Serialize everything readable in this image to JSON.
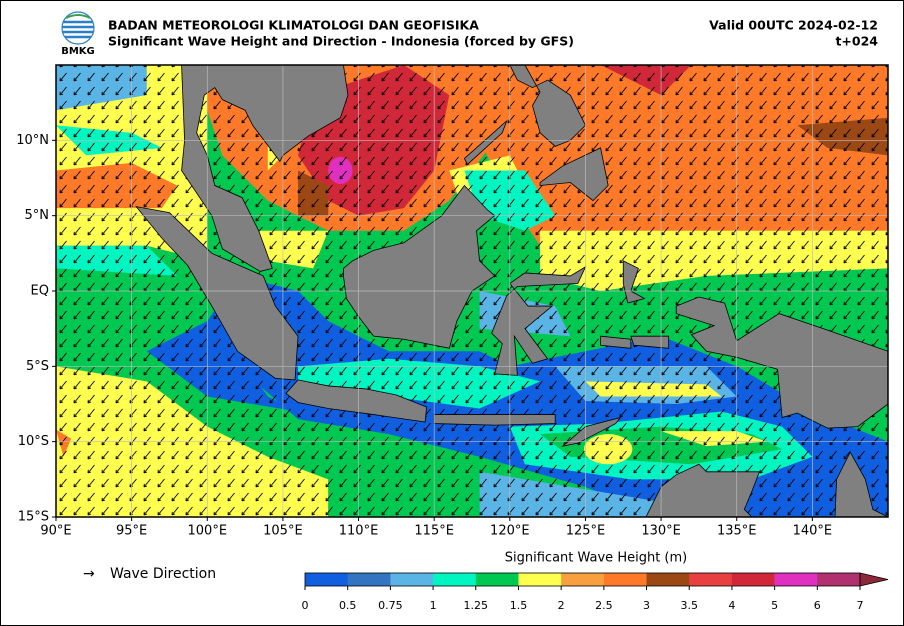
{
  "header": {
    "logo_text": "BMKG",
    "agency": "BADAN METEOROLOGI KLIMATOLOGI DAN GEOFISIKA",
    "title": "Significant Wave Height and Direction - Indonesia (forced by GFS)",
    "valid": "Valid 00UTC 2024-02-12",
    "lead": "t+024"
  },
  "map": {
    "xlim": [
      90,
      145
    ],
    "ylim": [
      -15,
      15
    ],
    "xticks": [
      {
        "value": 90,
        "label": "90°E"
      },
      {
        "value": 95,
        "label": "95°E"
      },
      {
        "value": 100,
        "label": "100°E"
      },
      {
        "value": 105,
        "label": "105°E"
      },
      {
        "value": 110,
        "label": "110°E"
      },
      {
        "value": 115,
        "label": "115°E"
      },
      {
        "value": 120,
        "label": "120°E"
      },
      {
        "value": 125,
        "label": "125°E"
      },
      {
        "value": 130,
        "label": "130°E"
      },
      {
        "value": 135,
        "label": "135°E"
      },
      {
        "value": 140,
        "label": "140°E"
      }
    ],
    "yticks": [
      {
        "value": 10,
        "label": "10°N"
      },
      {
        "value": 5,
        "label": "5°N"
      },
      {
        "value": 0,
        "label": "EQ"
      },
      {
        "value": -5,
        "label": "5°S"
      },
      {
        "value": -10,
        "label": "10°S"
      },
      {
        "value": -15,
        "label": "15°S"
      }
    ],
    "grid": true
  },
  "legend": {
    "symbol": "→",
    "label": "Wave Direction"
  },
  "colorbar": {
    "label": "Significant Wave Height (m)",
    "ticks": [
      0,
      0.5,
      0.75,
      1,
      1.25,
      1.5,
      2,
      2.5,
      3,
      3.5,
      4,
      5,
      6,
      7
    ],
    "colors": [
      "#0f5fe0",
      "#3274c0",
      "#5ab4e6",
      "#00f5c0",
      "#00c850",
      "#ffff50",
      "#f8a040",
      "#ff7a28",
      "#9c4814",
      "#e84040",
      "#d02838",
      "#e030c0",
      "#b03070"
    ],
    "extend_color": "#8c2838"
  }
}
